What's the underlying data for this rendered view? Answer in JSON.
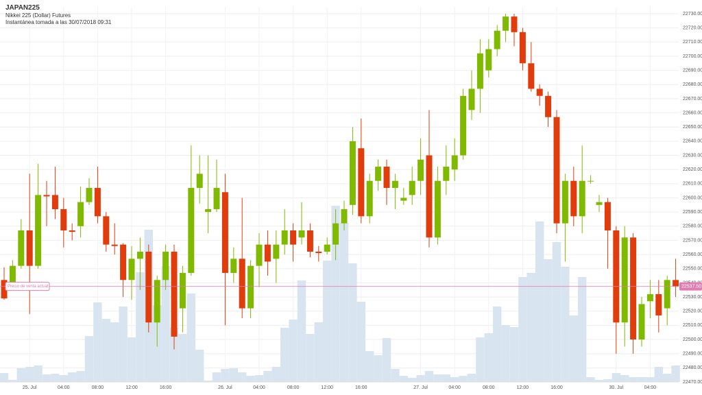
{
  "header": {
    "symbol": "JAPAN225",
    "name": "Nikkei 225 (Dollar) Futures",
    "snapshot": "Instantánea tomada a las 30/07/2018 09:31"
  },
  "chart_data": {
    "type": "candlestick",
    "categories": [
      null,
      null,
      null,
      "25. Jul",
      null,
      null,
      null,
      "04:00",
      null,
      null,
      null,
      "08:00",
      null,
      null,
      null,
      "12:00",
      null,
      null,
      null,
      "16:00",
      null,
      null,
      null,
      null,
      null,
      null,
      "26. Jul",
      null,
      null,
      null,
      "04:00",
      null,
      null,
      null,
      "08:00",
      null,
      null,
      null,
      "12:00",
      null,
      null,
      null,
      "16:00",
      null,
      null,
      null,
      null,
      null,
      null,
      "27. Jul",
      null,
      null,
      null,
      "04:00",
      null,
      null,
      null,
      "08:00",
      null,
      null,
      null,
      "12:00",
      null,
      null,
      null,
      "16:00",
      null,
      null,
      null,
      null,
      null,
      null,
      "30. Jul",
      null,
      null,
      null,
      "04:00",
      null,
      null,
      null
    ],
    "open": [
      22542,
      22540,
      22552,
      22577,
      22552,
      22602,
      22602,
      22592,
      22577,
      22580,
      22597,
      22607,
      22587,
      22567,
      22567,
      22542,
      22557,
      22562,
      22512,
      22542,
      22562,
      22522,
      22547,
      22607,
      22590,
      22592,
      22604,
      22547,
      22557,
      22522,
      22552,
      22567,
      22557,
      22567,
      22577,
      22572,
      22577,
      22562,
      22562,
      22567,
      22582,
      22595,
      22635,
      22587,
      22612,
      22622,
      22607,
      22598,
      22602,
      22612,
      22630,
      22572,
      22612,
      22620,
      22630,
      22662,
      22677,
      22690,
      22705,
      22718,
      22728,
      22717,
      22695,
      22677,
      22672,
      22657,
      22582,
      22612,
      22587,
      22612,
      22595,
      22597,
      22577,
      22512,
      22572,
      22500,
      22527,
      22532,
      22522,
      22542
    ],
    "close": [
      22529,
      22552,
      22577,
      22552,
      22602,
      22601,
      22592,
      22577,
      22576,
      22597,
      22607,
      22587,
      22567,
      22566,
      22542,
      22557,
      22562,
      22512,
      22542,
      22562,
      22502,
      22547,
      22607,
      22617,
      22592,
      22607,
      22547,
      22557,
      22522,
      22552,
      22567,
      22555,
      22567,
      22577,
      22567,
      22577,
      22562,
      22561,
      22567,
      22582,
      22592,
      22640,
      22587,
      22612,
      22622,
      22607,
      22612,
      22600,
      22612,
      22627,
      22572,
      22612,
      22622,
      22630,
      22672,
      22677,
      22702,
      22705,
      22718,
      22728,
      22717,
      22695,
      22677,
      22672,
      22657,
      22582,
      22612,
      22587,
      22612,
      22612,
      22597,
      22577,
      22512,
      22572,
      22500,
      22525,
      22532,
      22517,
      22542,
      22537.5
    ],
    "high": [
      22551,
      22556,
      22585,
      22617,
      22624,
      22612,
      22622,
      22600,
      22582,
      22608,
      22614,
      22622,
      22590,
      22582,
      22568,
      22566,
      22572,
      22567,
      22545,
      22567,
      22567,
      22552,
      22637,
      22630,
      22630,
      22627,
      22617,
      22565,
      22600,
      22556,
      22575,
      22577,
      22577,
      22592,
      22582,
      22597,
      22582,
      22566,
      22572,
      22592,
      22598,
      22650,
      22656,
      22617,
      22627,
      22627,
      22617,
      22607,
      22622,
      22642,
      22662,
      22622,
      22637,
      22642,
      22677,
      22690,
      22712,
      22712,
      22722,
      22730,
      22730,
      22720,
      22710,
      22680,
      22675,
      22662,
      22617,
      22622,
      22637,
      22616,
      22602,
      22600,
      22580,
      22580,
      22575,
      22530,
      22542,
      22542,
      22545,
      22557
    ],
    "low": [
      22528,
      22538,
      22550,
      22518,
      22550,
      22580,
      22585,
      22565,
      22570,
      22572,
      22595,
      22582,
      22562,
      22560,
      22530,
      22528,
      22535,
      22505,
      22495,
      22535,
      22493,
      22505,
      22545,
      22596,
      22575,
      22590,
      22510,
      22540,
      22515,
      22515,
      22537,
      22545,
      22540,
      22560,
      22555,
      22567,
      22558,
      22555,
      22560,
      22556,
      22577,
      22588,
      22582,
      22582,
      22605,
      22595,
      22592,
      22595,
      22595,
      22602,
      22565,
      22567,
      22602,
      22612,
      22627,
      22655,
      22660,
      22685,
      22700,
      22710,
      22707,
      22690,
      22675,
      22665,
      22650,
      22575,
      22555,
      22580,
      22575,
      22610,
      22590,
      22550,
      22490,
      22495,
      22490,
      22495,
      22515,
      22505,
      22510,
      22530
    ],
    "volume": [
      13,
      3,
      20,
      22,
      24,
      11,
      12,
      10,
      14,
      16,
      67,
      116,
      92,
      87,
      110,
      65,
      160,
      222,
      112,
      169,
      79,
      70,
      129,
      47,
      2,
      14,
      19,
      20,
      14,
      9,
      10,
      16,
      22,
      79,
      91,
      148,
      70,
      87,
      177,
      257,
      232,
      173,
      117,
      45,
      39,
      64,
      19,
      9,
      6,
      10,
      16,
      11,
      11,
      7,
      9,
      12,
      65,
      71,
      110,
      83,
      80,
      153,
      159,
      234,
      179,
      204,
      168,
      97,
      153,
      7,
      3,
      4,
      13,
      10,
      7,
      7,
      7,
      22,
      12,
      24
    ],
    "up_color": "#7fba00",
    "down_color": "#e03c0c",
    "volume_color": "#d8e5f1",
    "ylim": [
      22470,
      22730
    ],
    "y2lim": [
      0,
      537
    ],
    "yticks": [
      {
        "value": 22470,
        "label": "22470.00"
      },
      {
        "value": 22480,
        "label": "22480.00"
      },
      {
        "value": 22490,
        "label": "22490.00"
      },
      {
        "value": 22500,
        "label": "22500.00"
      },
      {
        "value": 22510,
        "label": "22510.00"
      },
      {
        "value": 22520,
        "label": "22520.00"
      },
      {
        "value": 22530,
        "label": "22530.00"
      },
      {
        "value": 22540,
        "label": "22540.00"
      },
      {
        "value": 22550,
        "label": "22550.00"
      },
      {
        "value": 22560,
        "label": "22560.00"
      },
      {
        "value": 22570,
        "label": "22570.00"
      },
      {
        "value": 22580,
        "label": "22580.00"
      },
      {
        "value": 22590,
        "label": "22590.00"
      },
      {
        "value": 22600,
        "label": "22600.00"
      },
      {
        "value": 22610,
        "label": "22610.00"
      },
      {
        "value": 22620,
        "label": "22620.00"
      },
      {
        "value": 22630,
        "label": "22630.00"
      },
      {
        "value": 22640,
        "label": "22640.00"
      },
      {
        "value": 22650,
        "label": "22650.00"
      },
      {
        "value": 22660,
        "label": "22660.00"
      },
      {
        "value": 22670,
        "label": "22670.00"
      },
      {
        "value": 22680,
        "label": "22680.00"
      },
      {
        "value": 22690,
        "label": "22690.00"
      },
      {
        "value": 22700,
        "label": "22700.00"
      },
      {
        "value": 22710,
        "label": "22710.00"
      },
      {
        "value": 22720,
        "label": "22720.00"
      },
      {
        "value": 22730,
        "label": "22730.00"
      }
    ],
    "grid": true,
    "current_price": {
      "value": 22537.5,
      "label": "22537.50",
      "name": "Precio de venta actual",
      "color": "#e27cb0"
    }
  }
}
